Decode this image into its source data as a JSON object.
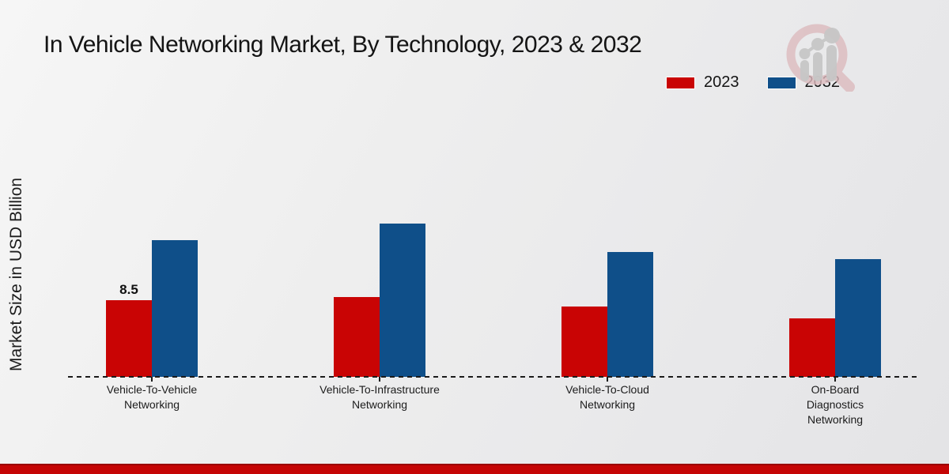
{
  "chart_data": {
    "type": "bar",
    "title": "In Vehicle Networking Market, By Technology, 2023 & 2032",
    "xlabel": "",
    "ylabel": "Market Size in USD Billion",
    "categories": [
      "Vehicle-To-Vehicle\nNetworking",
      "Vehicle-To-Infrastructure\nNetworking",
      "Vehicle-To-Cloud\nNetworking",
      "On-Board\nDiagnostics\nNetworking"
    ],
    "series": [
      {
        "name": "2023",
        "color": "#c90404",
        "values": [
          8.5,
          8.9,
          7.8,
          6.5
        ]
      },
      {
        "name": "2032",
        "color": "#0f4f89",
        "values": [
          15.2,
          17.0,
          13.9,
          13.1
        ]
      }
    ],
    "value_labels": [
      {
        "series": "2023",
        "category_index": 0,
        "text": "8.5"
      }
    ],
    "ylim": [
      0,
      18
    ],
    "grid": false,
    "legend_position": "top-right",
    "baseline_style": "dashed"
  },
  "colors": {
    "accent_2023": "#c90404",
    "accent_2032": "#0f4f89",
    "footer_bar": "#c50505",
    "background": "#ececec"
  },
  "icons": {
    "logo": "magnifier-bar-chart-logo"
  }
}
